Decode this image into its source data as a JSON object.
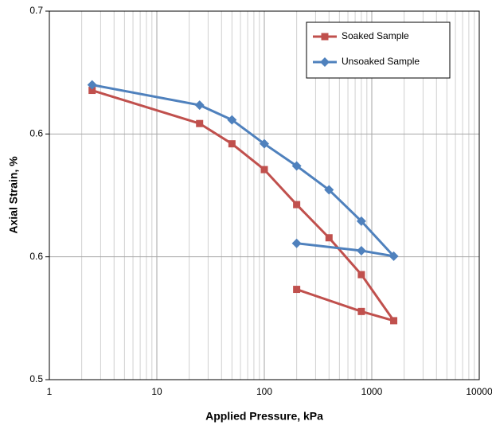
{
  "chart_data": {
    "type": "line",
    "x_label": "Applied Pressure, kPa",
    "y_label": "Axial Strain, %",
    "x": [
      2.5,
      25,
      50,
      100,
      200,
      400,
      800,
      1600,
      800,
      200
    ],
    "series": [
      {
        "name": "Soaked Sample",
        "color": "#c0504d",
        "marker": "square",
        "values": [
          0.657,
          0.639,
          0.628,
          0.614,
          0.595,
          0.577,
          0.557,
          0.532,
          0.537,
          0.549
        ]
      },
      {
        "name": "Unsoaked Sample",
        "color": "#4f81bd",
        "marker": "diamond",
        "values": [
          0.66,
          0.649,
          0.641,
          0.628,
          0.616,
          0.603,
          0.586,
          0.567,
          0.57,
          0.574
        ]
      }
    ],
    "xlim": [
      1,
      10000
    ],
    "xticks": [
      1,
      10,
      100,
      1000,
      10000
    ],
    "xscale": "log",
    "ylim": [
      0.5,
      0.7
    ],
    "yticks": [
      0.5,
      {
        "value": 0.56667,
        "label": "0.6"
      },
      {
        "value": 0.63333,
        "label": "0.6"
      },
      0.7
    ],
    "grid": true,
    "legend": "upper right"
  }
}
